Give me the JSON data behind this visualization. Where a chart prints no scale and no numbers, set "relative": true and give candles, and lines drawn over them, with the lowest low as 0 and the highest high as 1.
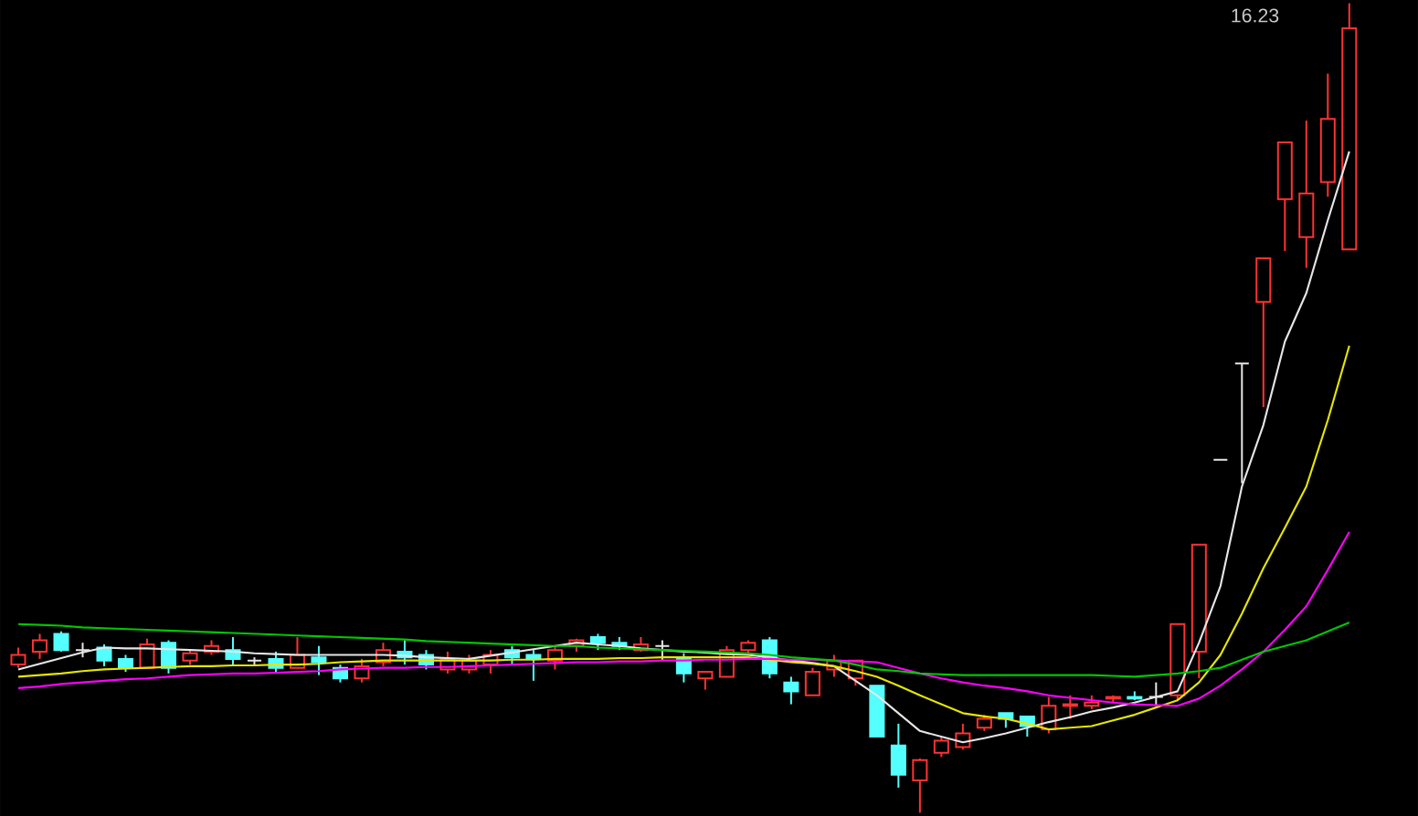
{
  "chart_data": {
    "type": "candlestick",
    "relative": true,
    "annotations": [
      "16.23"
    ],
    "categories": [
      null,
      null,
      null,
      null,
      null,
      null,
      null,
      null,
      null,
      null,
      null,
      null,
      null,
      null,
      null,
      null,
      null,
      null,
      null,
      null,
      null,
      null,
      null,
      null,
      null,
      null,
      null,
      null,
      null,
      null,
      null,
      null,
      null,
      null,
      null,
      null,
      null,
      null,
      null,
      null,
      null,
      null,
      null,
      null,
      null,
      null,
      null,
      null,
      null,
      null,
      null,
      null,
      null,
      null,
      null,
      null,
      null,
      null,
      null,
      null,
      null,
      null,
      null
    ],
    "ohlc": [
      [
        0.183,
        0.204,
        0.179,
        0.195
      ],
      [
        0.199,
        0.221,
        0.19,
        0.213
      ],
      [
        0.221,
        0.224,
        0.199,
        0.201
      ],
      [
        0.201,
        0.21,
        0.192,
        0.201
      ],
      [
        0.204,
        0.208,
        0.181,
        0.188
      ],
      [
        0.19,
        0.195,
        0.174,
        0.179
      ],
      [
        0.179,
        0.215,
        0.179,
        0.208
      ],
      [
        0.21,
        0.213,
        0.172,
        0.179
      ],
      [
        0.188,
        0.201,
        0.183,
        0.197
      ],
      [
        0.199,
        0.213,
        0.195,
        0.206
      ],
      [
        0.201,
        0.217,
        0.181,
        0.19
      ],
      [
        0.188,
        0.192,
        0.183,
        0.188
      ],
      [
        0.19,
        0.199,
        0.172,
        0.179
      ],
      [
        0.179,
        0.217,
        0.179,
        0.195
      ],
      [
        0.192,
        0.206,
        0.17,
        0.186
      ],
      [
        0.179,
        0.183,
        0.161,
        0.166
      ],
      [
        0.166,
        0.19,
        0.161,
        0.181
      ],
      [
        0.186,
        0.21,
        0.181,
        0.201
      ],
      [
        0.199,
        0.213,
        0.183,
        0.192
      ],
      [
        0.195,
        0.201,
        0.177,
        0.183
      ],
      [
        0.177,
        0.199,
        0.172,
        0.19
      ],
      [
        0.177,
        0.195,
        0.172,
        0.188
      ],
      [
        0.183,
        0.201,
        0.172,
        0.195
      ],
      [
        0.201,
        0.206,
        0.183,
        0.192
      ],
      [
        0.195,
        0.201,
        0.163,
        0.19
      ],
      [
        0.188,
        0.206,
        0.177,
        0.201
      ],
      [
        0.206,
        0.215,
        0.199,
        0.213
      ],
      [
        0.217,
        0.221,
        0.201,
        0.21
      ],
      [
        0.21,
        0.217,
        0.201,
        0.206
      ],
      [
        0.201,
        0.217,
        0.199,
        0.208
      ],
      [
        0.206,
        0.213,
        0.188,
        0.206
      ],
      [
        0.192,
        0.197,
        0.161,
        0.172
      ],
      [
        0.166,
        0.174,
        0.152,
        0.174
      ],
      [
        0.168,
        0.206,
        0.168,
        0.201
      ],
      [
        0.201,
        0.213,
        0.195,
        0.21
      ],
      [
        0.213,
        0.217,
        0.166,
        0.172
      ],
      [
        0.161,
        0.168,
        0.134,
        0.15
      ],
      [
        0.145,
        0.179,
        0.145,
        0.174
      ],
      [
        0.177,
        0.195,
        0.168,
        0.188
      ],
      [
        0.166,
        0.188,
        0.157,
        0.188
      ],
      [
        0.157,
        0.157,
        0.094,
        0.094
      ],
      [
        0.083,
        0.11,
        0.031,
        0.047
      ],
      [
        0.04,
        0.067,
        0.0,
        0.065
      ],
      [
        0.074,
        0.094,
        0.069,
        0.089
      ],
      [
        0.081,
        0.11,
        0.078,
        0.098
      ],
      [
        0.105,
        0.121,
        0.101,
        0.116
      ],
      [
        0.123,
        0.123,
        0.105,
        0.116
      ],
      [
        0.119,
        0.119,
        0.094,
        0.107
      ],
      [
        0.103,
        0.143,
        0.098,
        0.132
      ],
      [
        0.132,
        0.145,
        0.116,
        0.134
      ],
      [
        0.132,
        0.145,
        0.128,
        0.136
      ],
      [
        0.141,
        0.145,
        0.136,
        0.143
      ],
      [
        0.143,
        0.15,
        0.139,
        0.141
      ],
      [
        0.143,
        0.161,
        0.132,
        0.143
      ],
      [
        0.145,
        0.233,
        0.139,
        0.233
      ],
      [
        0.199,
        0.331,
        0.166,
        0.331
      ],
      [
        0.436,
        0.436,
        0.436,
        0.436
      ],
      [
        0.555,
        0.555,
        0.407,
        0.555
      ],
      [
        0.631,
        0.685,
        0.501,
        0.685
      ],
      [
        0.758,
        0.828,
        0.694,
        0.828
      ],
      [
        0.711,
        0.855,
        0.673,
        0.765
      ],
      [
        0.779,
        0.913,
        0.761,
        0.857
      ],
      [
        0.696,
        1.0,
        0.696,
        0.969
      ]
    ],
    "colors": [
      "#ff3232",
      "#ff3232",
      "#54ffff",
      "#e6e6e6",
      "#54ffff",
      "#54ffff",
      "#ff3232",
      "#54ffff",
      "#ff3232",
      "#ff3232",
      "#54ffff",
      "#e6e6e6",
      "#54ffff",
      "#ff3232",
      "#54ffff",
      "#54ffff",
      "#ff3232",
      "#ff3232",
      "#54ffff",
      "#54ffff",
      "#ff3232",
      "#ff3232",
      "#ff3232",
      "#54ffff",
      "#54ffff",
      "#ff3232",
      "#ff3232",
      "#54ffff",
      "#54ffff",
      "#ff3232",
      "#e6e6e6",
      "#54ffff",
      "#ff3232",
      "#ff3232",
      "#ff3232",
      "#54ffff",
      "#54ffff",
      "#ff3232",
      "#ff3232",
      "#ff3232",
      "#54ffff",
      "#54ffff",
      "#ff3232",
      "#ff3232",
      "#ff3232",
      "#ff3232",
      "#54ffff",
      "#54ffff",
      "#ff3232",
      "#ff3232",
      "#ff3232",
      "#ff3232",
      "#54ffff",
      "#e6e6e6",
      "#ff3232",
      "#ff3232",
      "#e6e6e6",
      "#e6e6e6",
      "#ff3232",
      "#ff3232",
      "#ff3232",
      "#ff3232",
      "#ff3232"
    ],
    "series": [
      {
        "type": "line",
        "color": "#e6e6e6",
        "values": [
          0.177,
          0.184,
          0.191,
          0.198,
          0.204,
          0.203,
          0.203,
          0.202,
          0.201,
          0.2,
          0.199,
          0.197,
          0.196,
          0.195,
          0.195,
          0.195,
          0.195,
          0.195,
          0.194,
          0.192,
          0.191,
          0.19,
          0.194,
          0.198,
          0.202,
          0.206,
          0.21,
          0.208,
          0.206,
          0.203,
          0.201,
          0.199,
          0.198,
          0.196,
          0.195,
          0.192,
          0.188,
          0.185,
          0.181,
          0.163,
          0.145,
          0.123,
          0.101,
          0.094,
          0.087,
          0.092,
          0.098,
          0.105,
          0.112,
          0.118,
          0.125,
          0.13,
          0.136,
          0.143,
          0.15,
          0.21,
          0.28,
          0.403,
          0.479,
          0.582,
          0.642,
          0.732,
          0.817
        ]
      },
      {
        "type": "line",
        "color": "#e6e600",
        "values": [
          0.168,
          0.17,
          0.172,
          0.175,
          0.177,
          0.178,
          0.179,
          0.18,
          0.181,
          0.181,
          0.182,
          0.182,
          0.183,
          0.183,
          0.184,
          0.186,
          0.187,
          0.188,
          0.188,
          0.188,
          0.188,
          0.188,
          0.188,
          0.189,
          0.189,
          0.19,
          0.19,
          0.19,
          0.191,
          0.191,
          0.192,
          0.192,
          0.192,
          0.192,
          0.192,
          0.189,
          0.186,
          0.184,
          0.181,
          0.175,
          0.168,
          0.157,
          0.145,
          0.134,
          0.123,
          0.119,
          0.116,
          0.11,
          0.103,
          0.105,
          0.107,
          0.114,
          0.121,
          0.13,
          0.139,
          0.161,
          0.195,
          0.246,
          0.302,
          0.352,
          0.403,
          0.485,
          0.577
        ]
      },
      {
        "type": "line",
        "color": "#ff00ff",
        "values": [
          0.154,
          0.156,
          0.159,
          0.161,
          0.163,
          0.165,
          0.166,
          0.168,
          0.17,
          0.171,
          0.172,
          0.172,
          0.173,
          0.174,
          0.175,
          0.177,
          0.178,
          0.179,
          0.179,
          0.18,
          0.18,
          0.181,
          0.182,
          0.183,
          0.184,
          0.185,
          0.186,
          0.186,
          0.187,
          0.187,
          0.188,
          0.188,
          0.189,
          0.189,
          0.19,
          0.19,
          0.189,
          0.189,
          0.188,
          0.187,
          0.186,
          0.179,
          0.172,
          0.166,
          0.161,
          0.157,
          0.154,
          0.15,
          0.145,
          0.142,
          0.139,
          0.136,
          0.134,
          0.133,
          0.132,
          0.141,
          0.157,
          0.177,
          0.199,
          0.226,
          0.255,
          0.3,
          0.347
        ]
      },
      {
        "type": "line",
        "color": "#00c800",
        "values": [
          0.233,
          0.232,
          0.231,
          0.229,
          0.228,
          0.227,
          0.226,
          0.225,
          0.224,
          0.223,
          0.222,
          0.221,
          0.22,
          0.219,
          0.218,
          0.217,
          0.216,
          0.215,
          0.214,
          0.212,
          0.211,
          0.21,
          0.209,
          0.208,
          0.207,
          0.206,
          0.206,
          0.204,
          0.203,
          0.202,
          0.201,
          0.2,
          0.199,
          0.198,
          0.197,
          0.195,
          0.192,
          0.19,
          0.188,
          0.183,
          0.177,
          0.175,
          0.172,
          0.171,
          0.17,
          0.17,
          0.17,
          0.17,
          0.17,
          0.17,
          0.17,
          0.169,
          0.168,
          0.17,
          0.172,
          0.175,
          0.179,
          0.189,
          0.199,
          0.206,
          0.213,
          0.224,
          0.235
        ]
      }
    ]
  }
}
